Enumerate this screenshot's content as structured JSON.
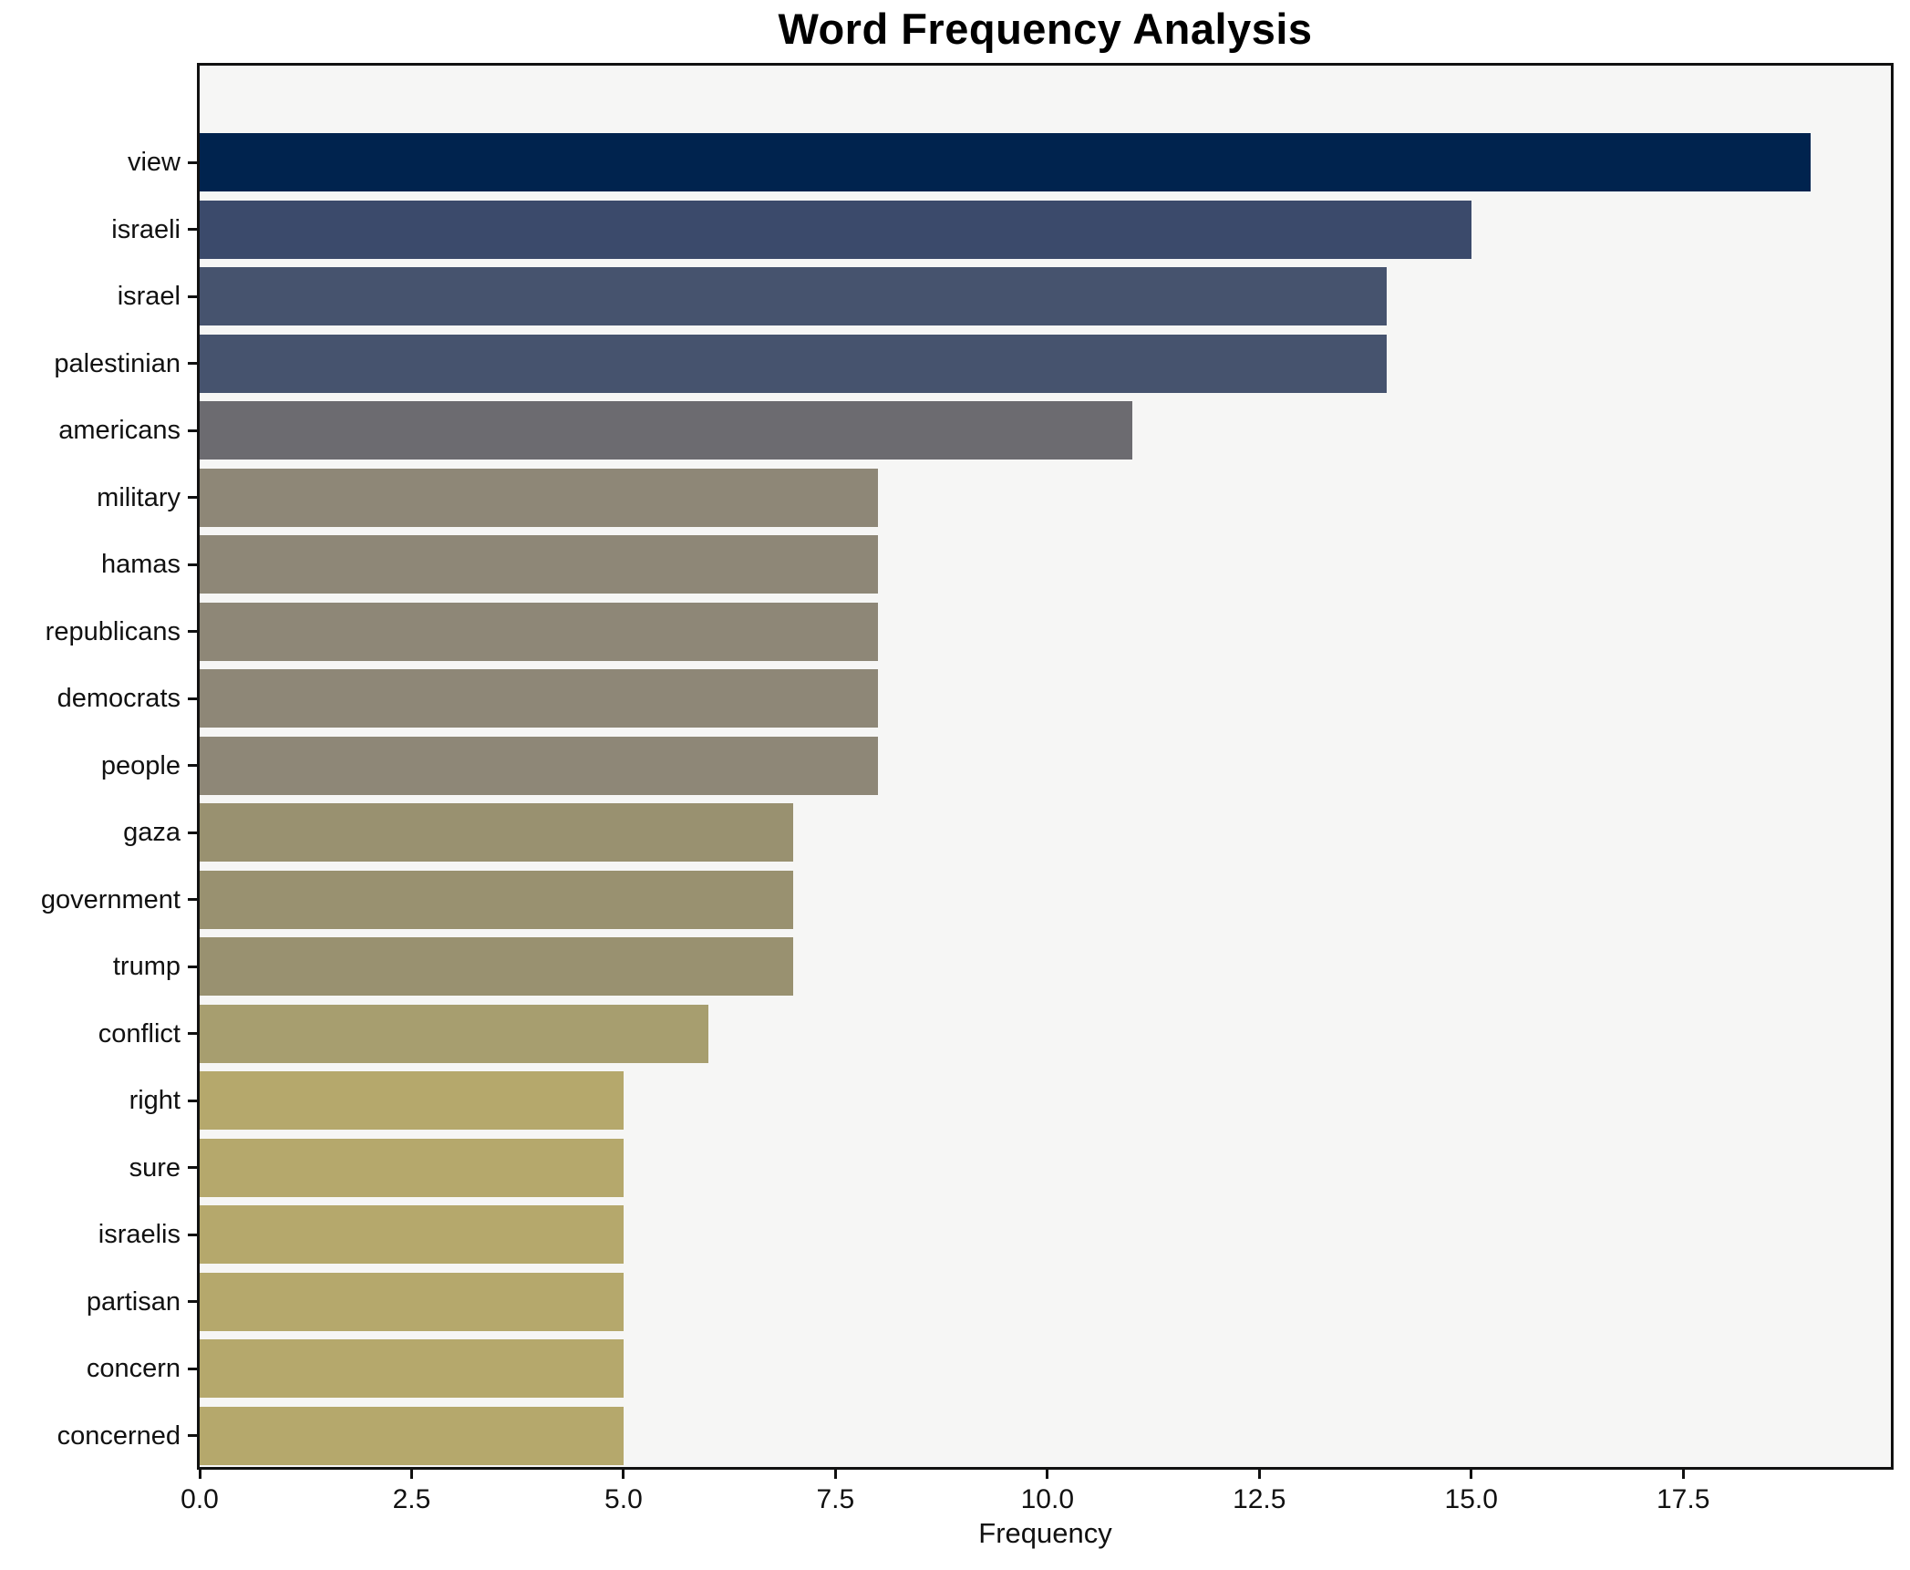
{
  "chart_data": {
    "type": "bar",
    "orientation": "horizontal",
    "title": "Word Frequency Analysis",
    "xlabel": "Frequency",
    "ylabel": "",
    "categories": [
      "view",
      "israeli",
      "israel",
      "palestinian",
      "americans",
      "military",
      "hamas",
      "republicans",
      "democrats",
      "people",
      "gaza",
      "government",
      "trump",
      "conflict",
      "right",
      "sure",
      "israelis",
      "partisan",
      "concern",
      "concerned"
    ],
    "values": [
      19,
      15,
      14,
      14,
      11,
      8,
      8,
      8,
      8,
      8,
      7,
      7,
      7,
      6,
      5,
      5,
      5,
      5,
      5,
      5
    ],
    "bar_colors": [
      "#00234e",
      "#3b4a6b",
      "#46536e",
      "#46536e",
      "#6c6b70",
      "#8e8777",
      "#8e8777",
      "#8e8777",
      "#8e8777",
      "#8e8777",
      "#999170",
      "#999170",
      "#999170",
      "#a79e6f",
      "#b5a86c",
      "#b5a86c",
      "#b5a86c",
      "#b5a86c",
      "#b5a86c",
      "#b5a86c"
    ],
    "xlim": [
      0,
      19.95
    ],
    "x_tick_labels": [
      "0.0",
      "2.5",
      "5.0",
      "7.5",
      "10.0",
      "12.5",
      "15.0",
      "17.5"
    ],
    "x_tick_values": [
      0,
      2.5,
      5,
      7.5,
      10,
      12.5,
      15,
      17.5
    ],
    "grid": false,
    "legend": null,
    "plot_bg": "#f6f6f5",
    "figure_bg": "#ffffff",
    "spine_color": "#111111",
    "text_color": "#111111"
  }
}
